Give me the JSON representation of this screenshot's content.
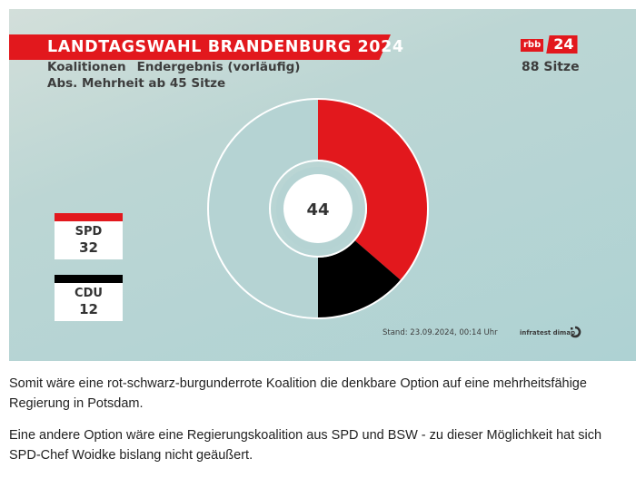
{
  "header": {
    "title": "LANDTAGSWAHL BRANDENBURG 2024",
    "subtitle_left": "Koalitionen",
    "subtitle_right": "Endergebnis (vorläufig)",
    "majority_note": "Abs. Mehrheit ab 45 Sitze"
  },
  "brand": {
    "logo_small": "rbb",
    "logo_big": "24",
    "total_seats_label": "88 Sitze"
  },
  "colors": {
    "accent_red": "#e2181d",
    "spd": "#e2181d",
    "cdu": "#000000",
    "empty": "#b5d3d3"
  },
  "chart_data": {
    "type": "pie",
    "title": "Koalitionen – Endergebnis (vorläufig)",
    "total_seats": 88,
    "majority_threshold": 45,
    "center_value": "44",
    "series": [
      {
        "name": "SPD",
        "value": 32,
        "color": "#e2181d"
      },
      {
        "name": "CDU",
        "value": 12,
        "color": "#000000"
      }
    ],
    "remaining_seats": 44,
    "legend": [
      {
        "party": "SPD",
        "seats": "32"
      },
      {
        "party": "CDU",
        "seats": "12"
      }
    ],
    "legend_position": "left"
  },
  "footer": {
    "stand": "Stand: 23.09.2024, 00:14 Uhr",
    "source": "infratest dimap"
  },
  "article": {
    "paragraphs": [
      "Somit wäre eine rot-schwarz-burgunderrote Koalition die denkbare Option auf eine mehrheitsfähige Regierung in Potsdam.",
      "Eine andere Option wäre eine Regierungskoalition aus SPD und BSW - zu dieser Möglichkeit hat sich SPD-Chef Woidke bislang nicht geäußert."
    ]
  }
}
